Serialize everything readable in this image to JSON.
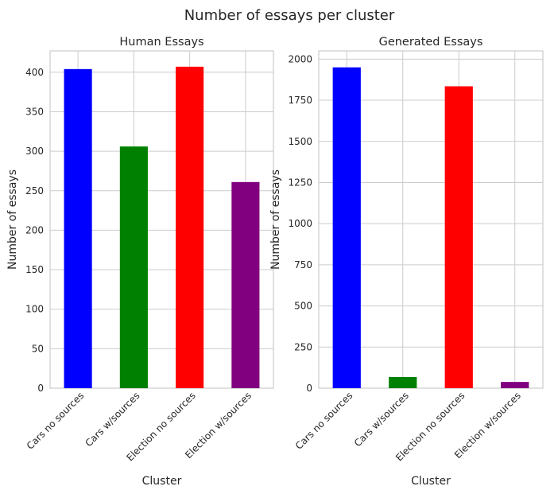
{
  "figure": {
    "suptitle": "Number of essays per cluster"
  },
  "chart_data": [
    {
      "type": "bar",
      "title": "Human Essays",
      "xlabel": "Cluster",
      "ylabel": "Number of essays",
      "categories": [
        "Cars no sources",
        "Cars w/sources",
        "Election no sources",
        "Election w/sources"
      ],
      "values": [
        404,
        306,
        407,
        261
      ],
      "colors": [
        "#0000ff",
        "#008000",
        "#ff0000",
        "#800080"
      ],
      "ylim": [
        0,
        427
      ],
      "yticks": [
        0,
        50,
        100,
        150,
        200,
        250,
        300,
        350,
        400
      ],
      "grid": true
    },
    {
      "type": "bar",
      "title": "Generated Essays",
      "xlabel": "Cluster",
      "ylabel": "Number of essays",
      "categories": [
        "Cars no sources",
        "Cars w/sources",
        "Election no sources",
        "Election w/sources"
      ],
      "values": [
        1950,
        68,
        1835,
        38
      ],
      "colors": [
        "#0000ff",
        "#008000",
        "#ff0000",
        "#800080"
      ],
      "ylim": [
        0,
        2050
      ],
      "yticks": [
        0,
        250,
        500,
        750,
        1000,
        1250,
        1500,
        1750,
        2000
      ],
      "grid": true
    }
  ]
}
